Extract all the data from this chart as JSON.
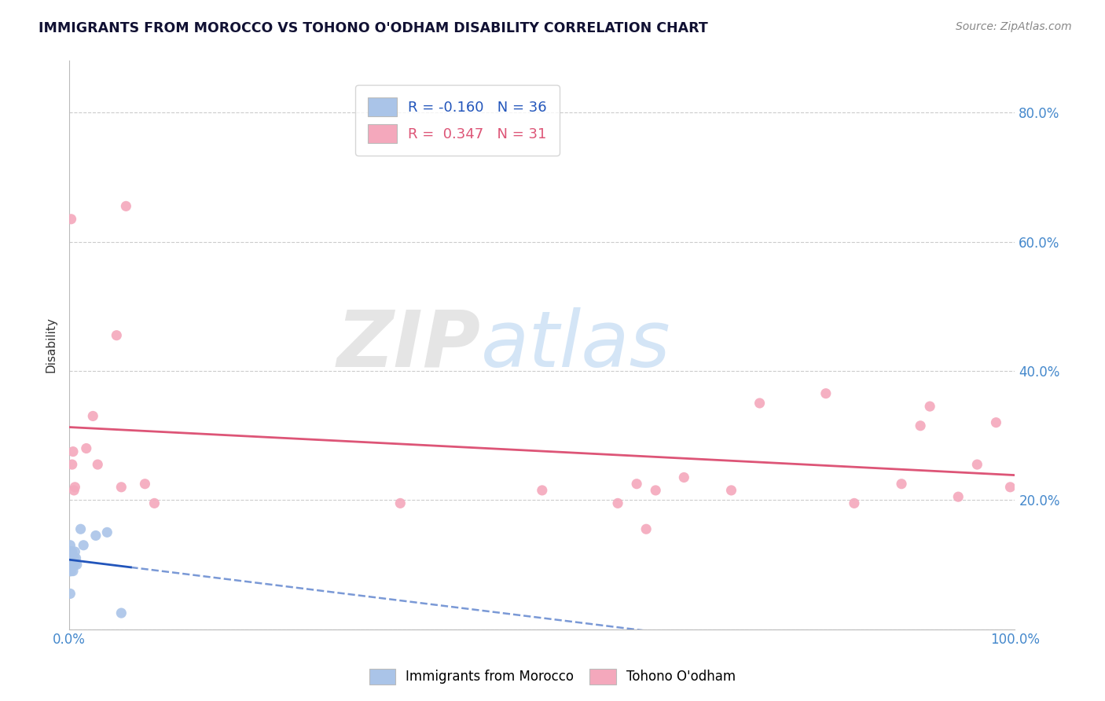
{
  "title": "IMMIGRANTS FROM MOROCCO VS TOHONO O'ODHAM DISABILITY CORRELATION CHART",
  "source": "Source: ZipAtlas.com",
  "ylabel": "Disability",
  "blue_label": "Immigrants from Morocco",
  "pink_label": "Tohono O'odham",
  "blue_R": -0.16,
  "blue_N": 36,
  "pink_R": 0.347,
  "pink_N": 31,
  "blue_color": "#aac4e8",
  "pink_color": "#f4a8bc",
  "blue_line_color": "#2255bb",
  "pink_line_color": "#dd5577",
  "blue_points_x": [
    0.001,
    0.001,
    0.001,
    0.001,
    0.001,
    0.001,
    0.001,
    0.001,
    0.001,
    0.001,
    0.002,
    0.002,
    0.002,
    0.002,
    0.002,
    0.002,
    0.002,
    0.003,
    0.003,
    0.003,
    0.003,
    0.004,
    0.004,
    0.004,
    0.005,
    0.005,
    0.006,
    0.006,
    0.007,
    0.008,
    0.012,
    0.015,
    0.028,
    0.04,
    0.055,
    0.001
  ],
  "blue_points_y": [
    0.1,
    0.11,
    0.12,
    0.09,
    0.1,
    0.11,
    0.1,
    0.09,
    0.13,
    0.1,
    0.12,
    0.11,
    0.1,
    0.1,
    0.09,
    0.11,
    0.12,
    0.1,
    0.11,
    0.12,
    0.1,
    0.1,
    0.11,
    0.09,
    0.11,
    0.1,
    0.1,
    0.12,
    0.11,
    0.1,
    0.155,
    0.13,
    0.145,
    0.15,
    0.025,
    0.055
  ],
  "pink_points_x": [
    0.002,
    0.003,
    0.004,
    0.005,
    0.006,
    0.018,
    0.025,
    0.03,
    0.05,
    0.055,
    0.06,
    0.08,
    0.09,
    0.35,
    0.5,
    0.58,
    0.6,
    0.61,
    0.62,
    0.65,
    0.7,
    0.73,
    0.8,
    0.83,
    0.88,
    0.9,
    0.91,
    0.94,
    0.96,
    0.98,
    0.995
  ],
  "pink_points_y": [
    0.635,
    0.255,
    0.275,
    0.215,
    0.22,
    0.28,
    0.33,
    0.255,
    0.455,
    0.22,
    0.655,
    0.225,
    0.195,
    0.195,
    0.215,
    0.195,
    0.225,
    0.155,
    0.215,
    0.235,
    0.215,
    0.35,
    0.365,
    0.195,
    0.225,
    0.315,
    0.345,
    0.205,
    0.255,
    0.32,
    0.22
  ],
  "xlim": [
    0.0,
    1.0
  ],
  "ylim": [
    0.0,
    0.88
  ],
  "watermark_zip": "ZIP",
  "watermark_atlas": "atlas",
  "watermark_zip_color": "#cccccc",
  "watermark_atlas_color": "#aaccee",
  "background_color": "#ffffff",
  "grid_color": "#cccccc"
}
